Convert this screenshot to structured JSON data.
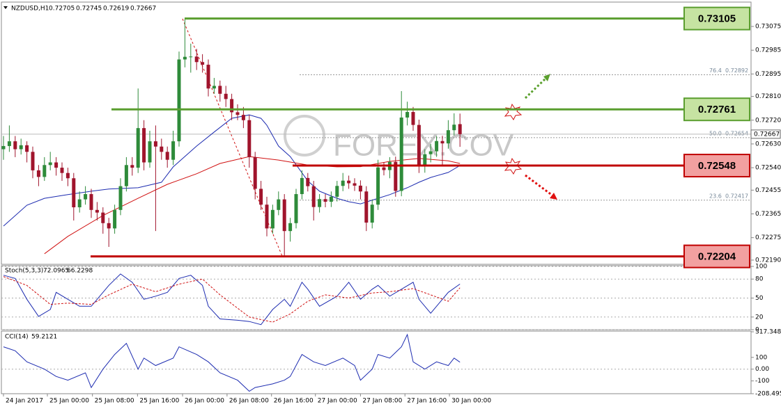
{
  "chart_data": {
    "type": "candlestick",
    "symbol": "NZDUSD,H1",
    "watermark": "FOREX.COV",
    "up_color": "#2e8b3a",
    "down_color": "#a0142c",
    "ylim": [
      0.72174,
      0.73162
    ],
    "yticks": [
      0.73075,
      0.72985,
      0.72895,
      {
        "value": 0.7281,
        "label": "0.72810"
      },
      {
        "value": 0.7272,
        "label": "0.72720"
      },
      {
        "value": 0.7263,
        "label": "0.72630"
      },
      {
        "value": 0.7254,
        "label": "0.72540"
      },
      0.72455,
      0.72365,
      0.72275,
      {
        "value": 0.7219,
        "label": "0.72190"
      }
    ],
    "xticks": [
      {
        "value": 0,
        "label": "24 Jan 2017"
      },
      {
        "value": 7.5,
        "label": "25 Jan 00:00"
      },
      {
        "value": 15.2,
        "label": "25 Jan 08:00"
      },
      {
        "value": 22.9,
        "label": "25 Jan 16:00"
      },
      {
        "value": 30.6,
        "label": "26 Jan 00:00"
      },
      {
        "value": 38.2,
        "label": "26 Jan 08:00"
      },
      {
        "value": 45.8,
        "label": "26 Jan 16:00"
      },
      {
        "value": 53.3,
        "label": "27 Jan 00:00"
      },
      {
        "value": 61,
        "label": "27 Jan 08:00"
      },
      {
        "value": 68.6,
        "label": "27 Jan 16:00"
      },
      {
        "value": 76.2,
        "label": "30 Jan 00:00"
      }
    ],
    "candles": [
      [
        0.7261,
        0.7266,
        0.7257,
        0.72622
      ],
      [
        0.72622,
        0.727,
        0.726,
        0.7264
      ],
      [
        0.7264,
        0.7266,
        0.7258,
        0.7261
      ],
      [
        0.7261,
        0.7265,
        0.7259,
        0.72625
      ],
      [
        0.72625,
        0.7264,
        0.7256,
        0.726
      ],
      [
        0.726,
        0.7262,
        0.725,
        0.7253
      ],
      [
        0.7253,
        0.7255,
        0.7247,
        0.72505
      ],
      [
        0.72505,
        0.7258,
        0.7249,
        0.7255
      ],
      [
        0.7255,
        0.726,
        0.7253,
        0.7256
      ],
      [
        0.7256,
        0.7258,
        0.7251,
        0.7254
      ],
      [
        0.7254,
        0.7256,
        0.7249,
        0.7252
      ],
      [
        0.7252,
        0.7254,
        0.7247,
        0.725
      ],
      [
        0.725,
        0.7252,
        0.7234,
        0.7239
      ],
      [
        0.7239,
        0.7245,
        0.7237,
        0.7242
      ],
      [
        0.7242,
        0.7247,
        0.724,
        0.7244
      ],
      [
        0.7244,
        0.7246,
        0.7235,
        0.7238
      ],
      [
        0.7238,
        0.7241,
        0.7234,
        0.7237
      ],
      [
        0.7237,
        0.7239,
        0.7229,
        0.7233
      ],
      [
        0.7233,
        0.7235,
        0.7224,
        0.7231
      ],
      [
        0.7231,
        0.724,
        0.7229,
        0.7238
      ],
      [
        0.7238,
        0.725,
        0.7236,
        0.7247
      ],
      [
        0.7247,
        0.7258,
        0.7245,
        0.7255
      ],
      [
        0.7255,
        0.7258,
        0.7251,
        0.7254
      ],
      [
        0.7254,
        0.7284,
        0.7252,
        0.7269
      ],
      [
        0.7269,
        0.7272,
        0.7253,
        0.7256
      ],
      [
        0.7256,
        0.7268,
        0.7254,
        0.7264
      ],
      [
        0.7264,
        0.727,
        0.723,
        0.7262
      ],
      [
        0.7262,
        0.7265,
        0.7257,
        0.726
      ],
      [
        0.726,
        0.7262,
        0.7254,
        0.7257
      ],
      [
        0.7257,
        0.7268,
        0.7255,
        0.7264
      ],
      [
        0.7264,
        0.7298,
        0.7262,
        0.7295
      ],
      [
        0.7295,
        0.73105,
        0.7292,
        0.7296
      ],
      [
        0.7296,
        0.7301,
        0.729,
        0.72961
      ],
      [
        0.72961,
        0.7299,
        0.7291,
        0.7294
      ],
      [
        0.7294,
        0.7297,
        0.729,
        0.7293
      ],
      [
        0.7293,
        0.7295,
        0.7281,
        0.7284
      ],
      [
        0.7284,
        0.7288,
        0.7282,
        0.7285
      ],
      [
        0.7285,
        0.7287,
        0.7279,
        0.7282
      ],
      [
        0.7282,
        0.7285,
        0.7277,
        0.728
      ],
      [
        0.728,
        0.7282,
        0.7272,
        0.7275
      ],
      [
        0.7275,
        0.7278,
        0.7272,
        0.7274
      ],
      [
        0.7274,
        0.7277,
        0.7269,
        0.7272
      ],
      [
        0.7272,
        0.7274,
        0.7254,
        0.7258
      ],
      [
        0.7258,
        0.726,
        0.7242,
        0.7246
      ],
      [
        0.7246,
        0.7249,
        0.7238,
        0.724
      ],
      [
        0.724,
        0.7243,
        0.7228,
        0.7231
      ],
      [
        0.7231,
        0.724,
        0.7229,
        0.7238
      ],
      [
        0.7238,
        0.7245,
        0.7236,
        0.7242
      ],
      [
        0.7242,
        0.7244,
        0.72206,
        0.723
      ],
      [
        0.723,
        0.7235,
        0.7226,
        0.7233
      ],
      [
        0.7233,
        0.7246,
        0.7231,
        0.7244
      ],
      [
        0.7244,
        0.7253,
        0.7242,
        0.72501
      ],
      [
        0.72501,
        0.7252,
        0.7245,
        0.7247
      ],
      [
        0.7247,
        0.7249,
        0.7234,
        0.72391
      ],
      [
        0.72391,
        0.7244,
        0.7237,
        0.72421
      ],
      [
        0.72421,
        0.7244,
        0.7239,
        0.72411
      ],
      [
        0.72411,
        0.7245,
        0.72391,
        0.7243
      ],
      [
        0.7243,
        0.7249,
        0.72412,
        0.72471
      ],
      [
        0.72471,
        0.7252,
        0.72451,
        0.72491
      ],
      [
        0.72491,
        0.7251,
        0.7246,
        0.72481
      ],
      [
        0.72481,
        0.725,
        0.72452,
        0.72472
      ],
      [
        0.72472,
        0.72492,
        0.7242,
        0.7245
      ],
      [
        0.7245,
        0.7247,
        0.723,
        0.72332
      ],
      [
        0.72332,
        0.7242,
        0.7231,
        0.724
      ],
      [
        0.724,
        0.7257,
        0.7238,
        0.72541
      ],
      [
        0.72541,
        0.72561,
        0.72511,
        0.72531
      ],
      [
        0.72531,
        0.7258,
        0.725,
        0.72562
      ],
      [
        0.72562,
        0.72582,
        0.7243,
        0.72452
      ],
      [
        0.72452,
        0.7283,
        0.72432,
        0.7273
      ],
      [
        0.7273,
        0.7279,
        0.727,
        0.72751
      ],
      [
        0.72751,
        0.7277,
        0.7268,
        0.72702
      ],
      [
        0.72702,
        0.72722,
        0.7252,
        0.72551
      ],
      [
        0.72551,
        0.7261,
        0.72521,
        0.72591
      ],
      [
        0.72591,
        0.7263,
        0.7256,
        0.72602
      ],
      [
        0.72602,
        0.7266,
        0.72581,
        0.72641
      ],
      [
        0.72641,
        0.72661,
        0.7255,
        0.72632
      ],
      [
        0.72632,
        0.7272,
        0.72612,
        0.72682
      ],
      [
        0.72682,
        0.72746,
        0.72662,
        0.72703
      ],
      [
        0.72705,
        0.72745,
        0.72619,
        0.72667
      ]
    ],
    "moving_averages": [
      {
        "color": "#1c2bb0",
        "x": [
          0,
          4,
          7,
          11,
          15,
          18,
          23,
          27,
          29,
          33,
          36,
          39,
          42,
          44,
          45,
          47,
          49,
          52,
          54,
          57,
          59,
          61,
          64,
          66,
          69,
          71,
          73,
          76,
          78
        ],
        "values": [
          0.72319,
          0.72398,
          0.72424,
          0.72438,
          0.72451,
          0.72459,
          0.72464,
          0.72485,
          0.72543,
          0.72622,
          0.72675,
          0.72727,
          0.7274,
          0.72727,
          0.72701,
          0.72622,
          0.72582,
          0.7249,
          0.72451,
          0.72424,
          0.72411,
          0.72403,
          0.72424,
          0.72438,
          0.72464,
          0.72485,
          0.72503,
          0.72522,
          0.72548
        ]
      },
      {
        "color": "#d01010",
        "x": [
          7,
          11,
          17,
          23,
          28,
          33,
          37,
          42,
          47,
          52,
          57,
          61,
          66,
          71,
          76,
          78
        ],
        "values": [
          0.72214,
          0.7228,
          0.72359,
          0.72424,
          0.72477,
          0.72517,
          0.72556,
          0.72582,
          0.72569,
          0.7255,
          0.72543,
          0.72544,
          0.72564,
          0.72575,
          0.72566,
          0.72556
        ]
      }
    ],
    "levels": [
      {
        "value": 0.73105,
        "color": "#5a9e2f",
        "fill": "#c6e3a2"
      },
      {
        "value": 0.72761,
        "color": "#5a9e2f",
        "fill": "#c6e3a2"
      },
      {
        "value": 0.72548,
        "color": "#c00000",
        "fill": "#f2a0a0"
      },
      {
        "value": 0.72204,
        "color": "#c00000",
        "fill": "#f2a0a0"
      }
    ],
    "fibonacci": [
      {
        "label": "76.4",
        "value": 0.72892
      },
      {
        "label": "50.0",
        "value": 0.72654
      },
      {
        "label": "23.6",
        "value": 0.72417
      }
    ],
    "stochastic": {
      "label": "Stoch(5,3,3)",
      "ylim": [
        0,
        100
      ],
      "yticks": [
        100,
        80,
        50,
        20,
        0
      ],
      "main": {
        "color": "#1c2bb0",
        "x": [
          0,
          2,
          4,
          6,
          8,
          9,
          11,
          13,
          15,
          17,
          18,
          20,
          22,
          24,
          26,
          28,
          30,
          32,
          34,
          35,
          37,
          40,
          42,
          44,
          46,
          48,
          49,
          51,
          52,
          54,
          57,
          59,
          61,
          63,
          64,
          66,
          68,
          70,
          71,
          73,
          74,
          76,
          78
        ],
        "values": [
          86,
          81,
          48,
          21,
          32,
          59,
          48,
          37,
          37,
          59,
          70,
          88,
          75,
          48,
          53,
          59,
          81,
          86,
          70,
          37,
          17,
          15,
          13,
          8,
          32,
          48,
          37,
          75,
          64,
          37,
          53,
          75,
          48,
          64,
          70,
          53,
          64,
          75,
          48,
          26,
          37,
          59,
          72.0965
        ]
      },
      "signal": {
        "color": "#d01010",
        "x": [
          0,
          4,
          8,
          11,
          15,
          18,
          22,
          26,
          30,
          34,
          37,
          42,
          46,
          49,
          52,
          55,
          59,
          63,
          66,
          70,
          73,
          76,
          78
        ],
        "values": [
          84,
          70,
          40,
          42,
          40,
          55,
          72,
          60,
          72,
          80,
          55,
          20,
          12,
          25,
          45,
          55,
          50,
          58,
          60,
          65,
          55,
          45,
          66.2298
        ]
      }
    },
    "cci": {
      "label": "CCI(14)",
      "ylim": [
        -208.4952,
        317.3488
      ],
      "yticks": [
        317.3488,
        100,
        {
          "value": 0,
          "label": "0.00"
        },
        -100,
        -208.4952
      ],
      "line": {
        "color": "#1c2bb0",
        "x": [
          0,
          2,
          4,
          7,
          9,
          11,
          14,
          15,
          17,
          19,
          21,
          23,
          24,
          26,
          29,
          30,
          33,
          35,
          37,
          40,
          42,
          43,
          46,
          48,
          49,
          51,
          53,
          55,
          58,
          60,
          61,
          63,
          64,
          66,
          68,
          69,
          70,
          72,
          74,
          76,
          77,
          78
        ],
        "values": [
          190,
          156,
          62,
          0,
          -62,
          -94,
          -31,
          -156,
          0,
          125,
          219,
          0,
          94,
          31,
          94,
          190,
          125,
          62,
          -31,
          -94,
          -188,
          -156,
          -125,
          -94,
          -62,
          125,
          62,
          31,
          94,
          31,
          -94,
          0,
          125,
          94,
          190,
          294,
          62,
          0,
          62,
          31,
          94,
          59.2121
        ]
      }
    }
  }
}
